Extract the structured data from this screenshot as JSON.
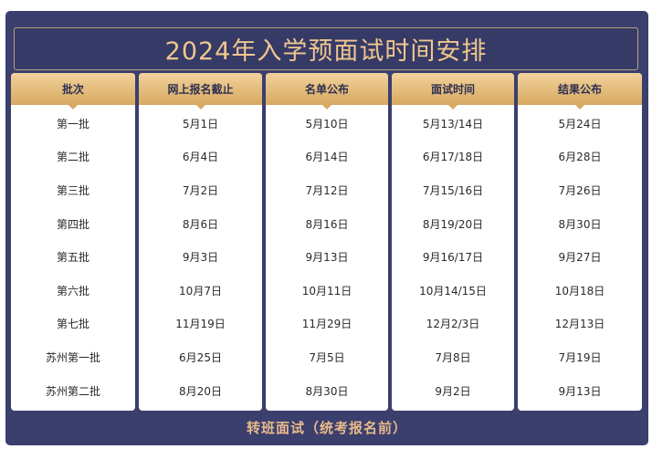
{
  "title": "2024年入学预面试时间安排",
  "columns": [
    {
      "header": "批次",
      "cells": [
        "第一批",
        "第二批",
        "第三批",
        "第四批",
        "第五批",
        "第六批",
        "第七批",
        "苏州第一批",
        "苏州第二批"
      ]
    },
    {
      "header": "网上报名截止",
      "cells": [
        "5月1日",
        "6月4日",
        "7月2日",
        "8月6日",
        "9月3日",
        "10月7日",
        "11月19日",
        "6月25日",
        "8月20日"
      ]
    },
    {
      "header": "名单公布",
      "cells": [
        "5月10日",
        "6月14日",
        "7月12日",
        "8月16日",
        "9月13日",
        "10月11日",
        "11月29日",
        "7月5日",
        "8月30日"
      ]
    },
    {
      "header": "面试时间",
      "cells": [
        "5月13/14日",
        "6月17/18日",
        "7月15/16日",
        "8月19/20日",
        "9月16/17日",
        "10月14/15日",
        "12月2/3日",
        "7月8日",
        "9月2日"
      ]
    },
    {
      "header": "结果公布",
      "cells": [
        "5月24日",
        "6月28日",
        "7月26日",
        "8月30日",
        "9月27日",
        "10月18日",
        "12月13日",
        "7月19日",
        "9月13日"
      ]
    }
  ],
  "footer": "转班面试（统考报名前）",
  "colors": {
    "navy": "#3b3f6d",
    "gold": "#d7a961",
    "title_text": "#efc78d"
  }
}
